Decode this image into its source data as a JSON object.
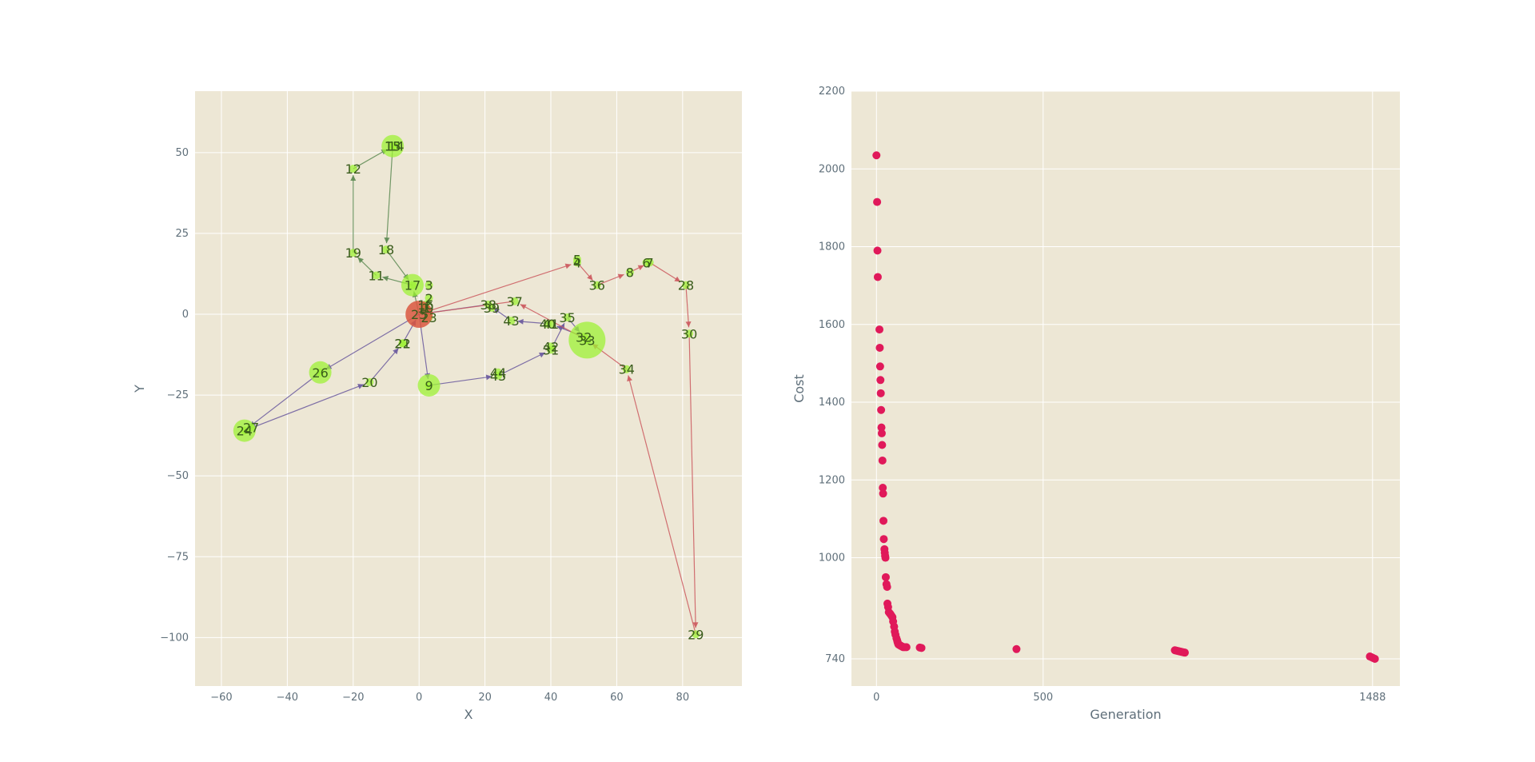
{
  "chart_data": [
    {
      "type": "scatter",
      "xlabel": "X",
      "ylabel": "Y",
      "xlim": [
        -68,
        98
      ],
      "ylim": [
        -115,
        69
      ],
      "xticks": [
        -60,
        -40,
        -20,
        0,
        20,
        40,
        60,
        80
      ],
      "yticks": [
        50,
        25,
        0,
        -25,
        -50,
        -75,
        -100
      ],
      "grid": true,
      "background": "#ede7d5",
      "node_color": "#9ef235",
      "depot_color": "#d9573f",
      "label_color": "#3a5c1c",
      "depot": {
        "id": "25",
        "x": 0,
        "y": 0
      },
      "nodes": [
        {
          "id": "1",
          "x": 2,
          "y": 2
        },
        {
          "id": "2",
          "x": 3,
          "y": 5
        },
        {
          "id": "3",
          "x": 3,
          "y": 9
        },
        {
          "id": "4",
          "x": 48,
          "y": 16
        },
        {
          "id": "5",
          "x": 48,
          "y": 17
        },
        {
          "id": "6",
          "x": 69,
          "y": 16
        },
        {
          "id": "7",
          "x": 70,
          "y": 16
        },
        {
          "id": "8",
          "x": 64,
          "y": 13
        },
        {
          "id": "9",
          "x": 3,
          "y": -22
        },
        {
          "id": "10",
          "x": 2,
          "y": 2
        },
        {
          "id": "11",
          "x": -13,
          "y": 12
        },
        {
          "id": "12",
          "x": -20,
          "y": 45
        },
        {
          "id": "13",
          "x": -8,
          "y": 52
        },
        {
          "id": "14",
          "x": -7,
          "y": 52
        },
        {
          "id": "15",
          "x": -8,
          "y": 52
        },
        {
          "id": "16",
          "x": 2,
          "y": 3
        },
        {
          "id": "17",
          "x": -2,
          "y": 9
        },
        {
          "id": "18",
          "x": -10,
          "y": 20
        },
        {
          "id": "19",
          "x": -20,
          "y": 19
        },
        {
          "id": "20",
          "x": -15,
          "y": -21
        },
        {
          "id": "21",
          "x": -5,
          "y": -9
        },
        {
          "id": "22",
          "x": -5,
          "y": -9
        },
        {
          "id": "23",
          "x": 3,
          "y": -1
        },
        {
          "id": "24",
          "x": -53,
          "y": -36
        },
        {
          "id": "26",
          "x": -30,
          "y": -18
        },
        {
          "id": "27",
          "x": -51,
          "y": -35
        },
        {
          "id": "28",
          "x": 81,
          "y": 9
        },
        {
          "id": "29",
          "x": 84,
          "y": -99
        },
        {
          "id": "30",
          "x": 82,
          "y": -6
        },
        {
          "id": "31",
          "x": 40,
          "y": -11
        },
        {
          "id": "32",
          "x": 50,
          "y": -7
        },
        {
          "id": "33",
          "x": 51,
          "y": -8
        },
        {
          "id": "34",
          "x": 63,
          "y": -17
        },
        {
          "id": "35",
          "x": 45,
          "y": -1
        },
        {
          "id": "36",
          "x": 54,
          "y": 9
        },
        {
          "id": "37",
          "x": 29,
          "y": 4
        },
        {
          "id": "38",
          "x": 21,
          "y": 3
        },
        {
          "id": "39",
          "x": 22,
          "y": 2
        },
        {
          "id": "40",
          "x": 39,
          "y": -3
        },
        {
          "id": "41",
          "x": 40,
          "y": -3
        },
        {
          "id": "42",
          "x": 40,
          "y": -10
        },
        {
          "id": "43",
          "x": 28,
          "y": -2
        },
        {
          "id": "44",
          "x": 24,
          "y": -18
        },
        {
          "id": "45",
          "x": 24,
          "y": -19
        }
      ],
      "big_markers": [
        {
          "x": -8,
          "y": 52,
          "size": "medium"
        },
        {
          "x": -2,
          "y": 9,
          "size": "medium"
        },
        {
          "x": -30,
          "y": -18,
          "size": "medium"
        },
        {
          "x": -53,
          "y": -36,
          "size": "medium"
        },
        {
          "x": 3,
          "y": -22,
          "size": "medium"
        },
        {
          "x": 51,
          "y": -8,
          "size": "large"
        }
      ],
      "routes": [
        {
          "color": "#5c8a52",
          "path": [
            [
              0,
              0
            ],
            [
              -2,
              9
            ],
            [
              -13,
              12
            ],
            [
              -20,
              19
            ],
            [
              -20,
              45
            ],
            [
              -8,
              52
            ],
            [
              -10,
              20
            ],
            [
              -2,
              9
            ]
          ]
        },
        {
          "color": "#6a5a9e",
          "path": [
            [
              0,
              0
            ],
            [
              -30,
              -18
            ],
            [
              -53,
              -36
            ],
            [
              -15,
              -21
            ],
            [
              -5,
              -9
            ],
            [
              0,
              0
            ],
            [
              3,
              -22
            ],
            [
              24,
              -19
            ],
            [
              40,
              -11
            ],
            [
              45,
              -1
            ],
            [
              50,
              -7
            ],
            [
              40,
              -3
            ],
            [
              28,
              -2
            ],
            [
              21,
              3
            ],
            [
              0,
              0
            ]
          ]
        },
        {
          "color": "#cc5a5f",
          "path": [
            [
              0,
              0
            ],
            [
              48,
              16
            ],
            [
              54,
              9
            ],
            [
              64,
              13
            ],
            [
              70,
              16
            ],
            [
              81,
              9
            ],
            [
              82,
              -6
            ],
            [
              84,
              -99
            ],
            [
              63,
              -17
            ],
            [
              51,
              -8
            ],
            [
              29,
              4
            ],
            [
              0,
              0
            ]
          ]
        }
      ]
    },
    {
      "type": "scatter",
      "xlabel": "Generation",
      "ylabel": "Cost",
      "xlim": [
        -75,
        1570
      ],
      "ylim": [
        670,
        2200
      ],
      "xticks": [
        0,
        500,
        1488
      ],
      "yticks": [
        2200,
        2000,
        1800,
        1600,
        1400,
        1200,
        1000,
        740
      ],
      "grid": true,
      "background": "#ede7d5",
      "point_color": "#e0195a",
      "x": [
        0,
        2,
        3,
        4,
        9,
        10,
        11,
        12,
        13,
        14,
        15,
        16,
        17,
        18,
        19,
        20,
        21,
        22,
        24,
        25,
        26,
        27,
        28,
        30,
        32,
        33,
        35,
        37,
        40,
        42,
        45,
        48,
        50,
        53,
        55,
        57,
        60,
        62,
        63,
        64,
        65,
        66,
        68,
        70,
        72,
        74,
        76,
        78,
        80,
        85,
        90,
        130,
        135,
        420,
        895,
        900,
        905,
        910,
        915,
        920,
        925,
        1480,
        1485,
        1490,
        1495
      ],
      "y": [
        2035,
        1915,
        1790,
        1722,
        1587,
        1540,
        1492,
        1457,
        1423,
        1380,
        1335,
        1320,
        1290,
        1250,
        1180,
        1165,
        1095,
        1048,
        1022,
        1013,
        1005,
        1000,
        950,
        932,
        925,
        882,
        873,
        860,
        857,
        855,
        851,
        847,
        836,
        823,
        810,
        802,
        793,
        788,
        784,
        782,
        779,
        777,
        776,
        775,
        774,
        773,
        772,
        771,
        770,
        770,
        770,
        769,
        768,
        765,
        762,
        761,
        760,
        759,
        758,
        757,
        756,
        746,
        744,
        742,
        740
      ]
    }
  ]
}
